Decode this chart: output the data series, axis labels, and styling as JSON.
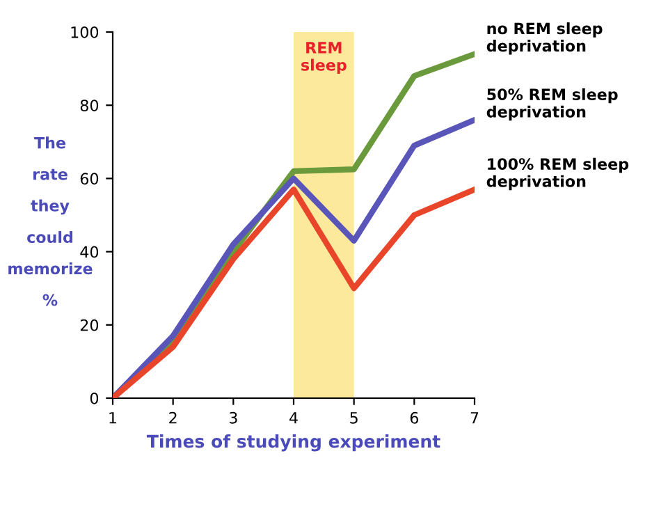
{
  "chart_data": {
    "type": "line",
    "x": [
      1,
      2,
      3,
      4,
      5,
      6,
      7
    ],
    "series": [
      {
        "name": "no REM sleep\ndeprivation",
        "color": "#6b9a3c",
        "values": [
          0,
          15,
          40,
          62,
          62.5,
          88,
          94
        ]
      },
      {
        "name": "50% REM sleep\ndeprivation",
        "color": "#5a55b8",
        "values": [
          0,
          17,
          42,
          60,
          43,
          69,
          76
        ]
      },
      {
        "name": "100% REM sleep\ndeprivation",
        "color": "#e8452a",
        "values": [
          0,
          14,
          38,
          57,
          30,
          50,
          57
        ]
      }
    ],
    "xlim": [
      1,
      7
    ],
    "ylim": [
      0,
      100
    ],
    "xticks": [
      1,
      2,
      3,
      4,
      5,
      6,
      7
    ],
    "yticks": [
      0,
      20,
      40,
      60,
      80,
      100
    ],
    "xlabel": "Times of studying experiment",
    "ylabel": "The\nrate\nthey\ncould\nmemorize\n%",
    "bands": [
      {
        "axis": "x",
        "from": 4,
        "to": 5,
        "label": "REM\nsleep",
        "color": "#fde99c"
      }
    ],
    "grid": false,
    "legend": false,
    "marker": "none",
    "line_style": "solid"
  }
}
